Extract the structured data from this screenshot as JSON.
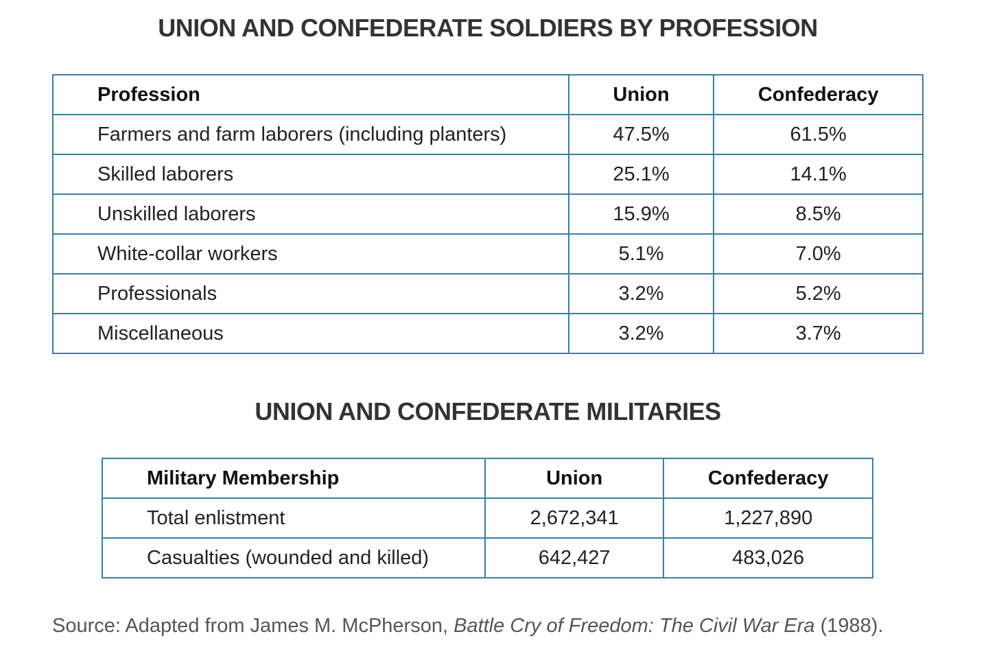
{
  "table1": {
    "title": "UNION AND CONFEDERATE SOLDIERS BY PROFESSION",
    "headers": [
      "Profession",
      "Union",
      "Confederacy"
    ],
    "rows": [
      [
        "Farmers and farm laborers (including planters)",
        "47.5%",
        "61.5%"
      ],
      [
        "Skilled laborers",
        "25.1%",
        "14.1%"
      ],
      [
        "Unskilled laborers",
        "15.9%",
        "8.5%"
      ],
      [
        "White-collar workers",
        "5.1%",
        "7.0%"
      ],
      [
        "Professionals",
        "3.2%",
        "5.2%"
      ],
      [
        "Miscellaneous",
        "3.2%",
        "3.7%"
      ]
    ]
  },
  "table2": {
    "title": "UNION AND CONFEDERATE MILITARIES",
    "headers": [
      "Military Membership",
      "Union",
      "Confederacy"
    ],
    "rows": [
      [
        "Total enlistment",
        "2,672,341",
        "1,227,890"
      ],
      [
        "Casualties (wounded and killed)",
        "642,427",
        "483,026"
      ]
    ]
  },
  "source": {
    "prefix": "Source: Adapted from James M. McPherson, ",
    "book": "Battle Cry of Freedom: The Civil War Era",
    "suffix": " (1988)."
  },
  "colors": {
    "border": "#3a7fa0",
    "title": "#333333",
    "source": "#555555"
  }
}
